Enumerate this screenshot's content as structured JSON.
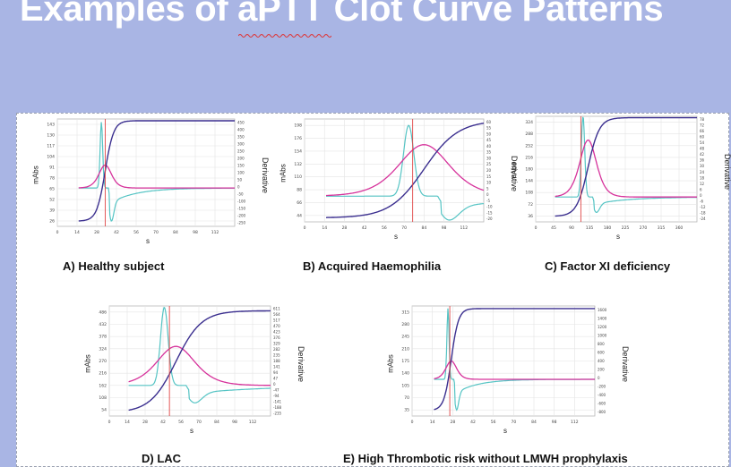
{
  "slide": {
    "title": "Examples of aPTT Clot Curve Patterns"
  },
  "axis_text": {
    "ylabel": "mAbs",
    "y2label": "Derivative",
    "xlabel": "s"
  },
  "colors": {
    "absorbance": "#3b2f8f",
    "first_derivative": "#d6329b",
    "second_derivative": "#55c4c4",
    "marker": "#e04545"
  },
  "chart_data": [
    {
      "id": "A",
      "type": "line",
      "caption": "A) Healthy subject",
      "xlabel": "s",
      "ylabel": "mAbs",
      "y2label": "Derivative",
      "x_ticks": [
        "0",
        "14",
        "28",
        "42",
        "56",
        "70",
        "84",
        "98",
        "112"
      ],
      "y_ticks": [
        "26",
        "39",
        "52",
        "65",
        "78",
        "91",
        "104",
        "117",
        "130",
        "143"
      ],
      "y2_ticks": [
        "-250",
        "-200",
        "-150",
        "-100",
        "-50",
        "0",
        "50",
        "100",
        "150",
        "200",
        "250",
        "300",
        "350",
        "400",
        "450"
      ],
      "xlim": [
        0,
        126
      ],
      "ylim": [
        20,
        143
      ],
      "y2lim": [
        -250,
        450
      ],
      "marker_x": 34,
      "curves": {
        "onset": 34,
        "width": 3.0,
        "min": 26,
        "max": 141,
        "d1_base": 0,
        "d1_peak": 150,
        "d2_amp": 430,
        "d2_neg": 290
      }
    },
    {
      "id": "B",
      "type": "line",
      "caption": "B) Acquired Haemophilia",
      "xlabel": "s",
      "ylabel": "mAbs",
      "y2label": "Derivative",
      "x_ticks": [
        "0",
        "14",
        "28",
        "42",
        "56",
        "70",
        "84",
        "98",
        "112"
      ],
      "y_ticks": [
        "44",
        "66",
        "88",
        "110",
        "132",
        "154",
        "176",
        "198"
      ],
      "y2_ticks": [
        "-20",
        "-15",
        "-10",
        "-5",
        "0",
        "5",
        "10",
        "15",
        "20",
        "25",
        "30",
        "35",
        "40",
        "45",
        "50",
        "55",
        "60"
      ],
      "xlim": [
        0,
        126
      ],
      "ylim": [
        44,
        198
      ],
      "y2lim": [
        -20,
        60
      ],
      "marker_x": 76,
      "curves": {
        "onset": 84,
        "width": 12,
        "min": 50,
        "max": 196,
        "d1_base": 0,
        "d1_peak": 40,
        "d2_amp": 55,
        "d2_neg": 25
      }
    },
    {
      "id": "C",
      "type": "line",
      "caption": "C) Factor XI deficiency",
      "xlabel": "s",
      "ylabel": "mAbs",
      "y2label": "Derivative",
      "x_ticks": [
        "0",
        "45",
        "90",
        "135",
        "180",
        "225",
        "270",
        "315",
        "360"
      ],
      "y_ticks": [
        "36",
        "72",
        "108",
        "144",
        "180",
        "216",
        "252",
        "288",
        "324"
      ],
      "y2_ticks": [
        "-24",
        "-18",
        "-12",
        "-6",
        "0",
        "6",
        "12",
        "18",
        "24",
        "30",
        "36",
        "42",
        "48",
        "54",
        "60",
        "66",
        "72",
        "78"
      ],
      "xlim": [
        0,
        400
      ],
      "ylim": [
        20,
        324
      ],
      "y2lim": [
        -24,
        78
      ],
      "marker_x": 112,
      "curves": {
        "onset": 130,
        "width": 14,
        "min": 36,
        "max": 320,
        "d1_base": 0,
        "d1_peak": 55,
        "d2_amp": 78,
        "d2_neg": 20
      }
    },
    {
      "id": "D",
      "type": "line",
      "caption": "D) LAC",
      "xlabel": "s",
      "ylabel": "mAbs",
      "y2label": "Derivative",
      "x_ticks": [
        "0",
        "14",
        "28",
        "42",
        "56",
        "70",
        "84",
        "98",
        "112"
      ],
      "y_ticks": [
        "54",
        "108",
        "162",
        "216",
        "270",
        "324",
        "378",
        "432",
        "486"
      ],
      "y2_ticks": [
        "-235",
        "-188",
        "-141",
        "-94",
        "-47",
        "0",
        "47",
        "94",
        "141",
        "188",
        "235",
        "282",
        "329",
        "376",
        "423",
        "470",
        "517",
        "564",
        "611"
      ],
      "xlim": [
        0,
        126
      ],
      "ylim": [
        40,
        500
      ],
      "y2lim": [
        -235,
        611
      ],
      "marker_x": 47,
      "curves": {
        "onset": 52,
        "width": 10,
        "min": 54,
        "max": 480,
        "d1_base": 0,
        "d1_peak": 300,
        "d2_amp": 600,
        "d2_neg": 180
      }
    },
    {
      "id": "E",
      "type": "line",
      "caption": "E) High Thrombotic risk without LMWH prophylaxis",
      "xlabel": "s",
      "ylabel": "mAbs",
      "y2label": "Derivative",
      "x_ticks": [
        "0",
        "14",
        "28",
        "42",
        "56",
        "70",
        "84",
        "98",
        "112"
      ],
      "y_ticks": [
        "35",
        "70",
        "105",
        "140",
        "175",
        "210",
        "245",
        "280",
        "315"
      ],
      "y2_ticks": [
        "-800",
        "-600",
        "-400",
        "-200",
        "0",
        "200",
        "400",
        "600",
        "800",
        "1000",
        "1200",
        "1400",
        "1600"
      ],
      "xlim": [
        0,
        126
      ],
      "ylim": [
        20,
        315
      ],
      "y2lim": [
        -800,
        1600
      ],
      "marker_x": 26,
      "curves": {
        "onset": 27,
        "width": 2.5,
        "min": 35,
        "max": 308,
        "d1_base": 0,
        "d1_peak": 400,
        "d2_amp": 1550,
        "d2_neg": 900
      }
    }
  ]
}
